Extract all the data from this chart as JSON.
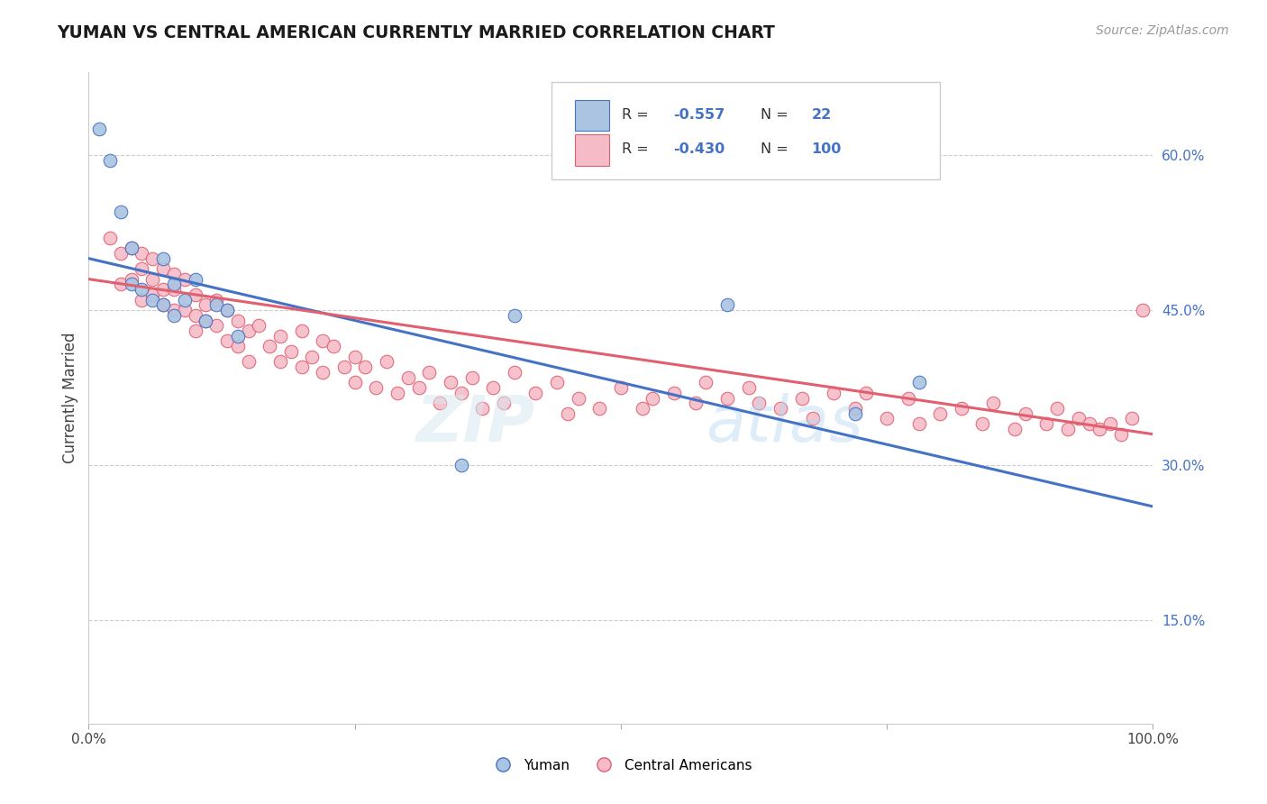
{
  "title": "YUMAN VS CENTRAL AMERICAN CURRENTLY MARRIED CORRELATION CHART",
  "source_text": "Source: ZipAtlas.com",
  "ylabel": "Currently Married",
  "x_min": 0.0,
  "x_max": 1.0,
  "y_min": 0.05,
  "y_max": 0.68,
  "x_ticks": [
    0.0,
    0.25,
    0.5,
    0.75,
    1.0
  ],
  "x_tick_labels": [
    "0.0%",
    "",
    "",
    "",
    "100.0%"
  ],
  "y_ticks": [
    0.15,
    0.3,
    0.45,
    0.6
  ],
  "y_tick_labels": [
    "15.0%",
    "30.0%",
    "45.0%",
    "60.0%"
  ],
  "grid_color": "#cccccc",
  "background_color": "#ffffff",
  "blue_color": "#aac4e2",
  "blue_line_color": "#4472c4",
  "pink_color": "#f5bcc8",
  "pink_line_color": "#e06070",
  "blue_N": 22,
  "pink_N": 100,
  "blue_R": -0.557,
  "pink_R": -0.43,
  "blue_line_x0": 0.0,
  "blue_line_y0": 0.5,
  "blue_line_x1": 1.0,
  "blue_line_y1": 0.26,
  "pink_line_x0": 0.0,
  "pink_line_y0": 0.48,
  "pink_line_x1": 1.0,
  "pink_line_y1": 0.33,
  "blue_x": [
    0.01,
    0.02,
    0.03,
    0.04,
    0.04,
    0.05,
    0.06,
    0.07,
    0.07,
    0.08,
    0.08,
    0.09,
    0.1,
    0.11,
    0.12,
    0.13,
    0.14,
    0.35,
    0.4,
    0.6,
    0.72,
    0.78
  ],
  "blue_y": [
    0.625,
    0.595,
    0.545,
    0.51,
    0.475,
    0.47,
    0.46,
    0.5,
    0.455,
    0.475,
    0.445,
    0.46,
    0.48,
    0.44,
    0.455,
    0.45,
    0.425,
    0.3,
    0.445,
    0.455,
    0.35,
    0.38
  ],
  "pink_x": [
    0.02,
    0.03,
    0.03,
    0.04,
    0.04,
    0.05,
    0.05,
    0.05,
    0.06,
    0.06,
    0.06,
    0.07,
    0.07,
    0.07,
    0.08,
    0.08,
    0.08,
    0.09,
    0.09,
    0.1,
    0.1,
    0.1,
    0.11,
    0.11,
    0.12,
    0.12,
    0.13,
    0.13,
    0.14,
    0.14,
    0.15,
    0.15,
    0.16,
    0.17,
    0.18,
    0.18,
    0.19,
    0.2,
    0.2,
    0.21,
    0.22,
    0.22,
    0.23,
    0.24,
    0.25,
    0.25,
    0.26,
    0.27,
    0.28,
    0.29,
    0.3,
    0.31,
    0.32,
    0.33,
    0.34,
    0.35,
    0.36,
    0.37,
    0.38,
    0.39,
    0.4,
    0.42,
    0.44,
    0.45,
    0.46,
    0.48,
    0.5,
    0.52,
    0.53,
    0.55,
    0.57,
    0.58,
    0.6,
    0.62,
    0.63,
    0.65,
    0.67,
    0.68,
    0.7,
    0.72,
    0.73,
    0.75,
    0.77,
    0.78,
    0.8,
    0.82,
    0.84,
    0.85,
    0.87,
    0.88,
    0.9,
    0.91,
    0.92,
    0.93,
    0.94,
    0.95,
    0.96,
    0.97,
    0.98,
    0.99
  ],
  "pink_y": [
    0.52,
    0.505,
    0.475,
    0.51,
    0.48,
    0.505,
    0.49,
    0.46,
    0.5,
    0.48,
    0.465,
    0.49,
    0.47,
    0.455,
    0.485,
    0.47,
    0.45,
    0.48,
    0.45,
    0.465,
    0.445,
    0.43,
    0.455,
    0.44,
    0.46,
    0.435,
    0.45,
    0.42,
    0.44,
    0.415,
    0.43,
    0.4,
    0.435,
    0.415,
    0.425,
    0.4,
    0.41,
    0.43,
    0.395,
    0.405,
    0.42,
    0.39,
    0.415,
    0.395,
    0.405,
    0.38,
    0.395,
    0.375,
    0.4,
    0.37,
    0.385,
    0.375,
    0.39,
    0.36,
    0.38,
    0.37,
    0.385,
    0.355,
    0.375,
    0.36,
    0.39,
    0.37,
    0.38,
    0.35,
    0.365,
    0.355,
    0.375,
    0.355,
    0.365,
    0.37,
    0.36,
    0.38,
    0.365,
    0.375,
    0.36,
    0.355,
    0.365,
    0.345,
    0.37,
    0.355,
    0.37,
    0.345,
    0.365,
    0.34,
    0.35,
    0.355,
    0.34,
    0.36,
    0.335,
    0.35,
    0.34,
    0.355,
    0.335,
    0.345,
    0.34,
    0.335,
    0.34,
    0.33,
    0.345,
    0.45
  ]
}
